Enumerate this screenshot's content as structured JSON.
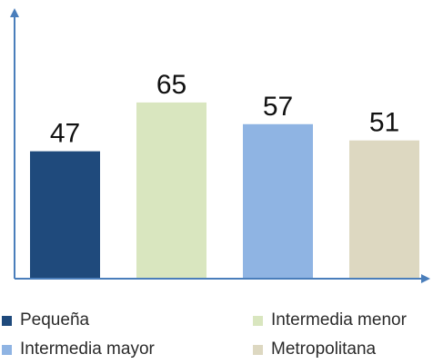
{
  "chart_data": {
    "type": "bar",
    "categories": [
      "Pequeña",
      "Intermedia menor",
      "Intermedia mayor",
      "Metropolitana"
    ],
    "values": [
      47,
      65,
      57,
      51
    ],
    "data_labels": [
      "47",
      "65",
      "57",
      "51"
    ],
    "title": "",
    "xlabel": "",
    "ylabel": "",
    "ylim": [
      0,
      78
    ],
    "grid": false,
    "legend": {
      "placement": "bottom",
      "entries": [
        "Pequeña",
        "Intermedia menor",
        "Intermedia mayor",
        "Metropolitana"
      ]
    },
    "colors": [
      "#1f4a7c",
      "#d9e6bf",
      "#8fb4e3",
      "#ddd8c1"
    ],
    "axis_color": "#4a7ebb"
  }
}
